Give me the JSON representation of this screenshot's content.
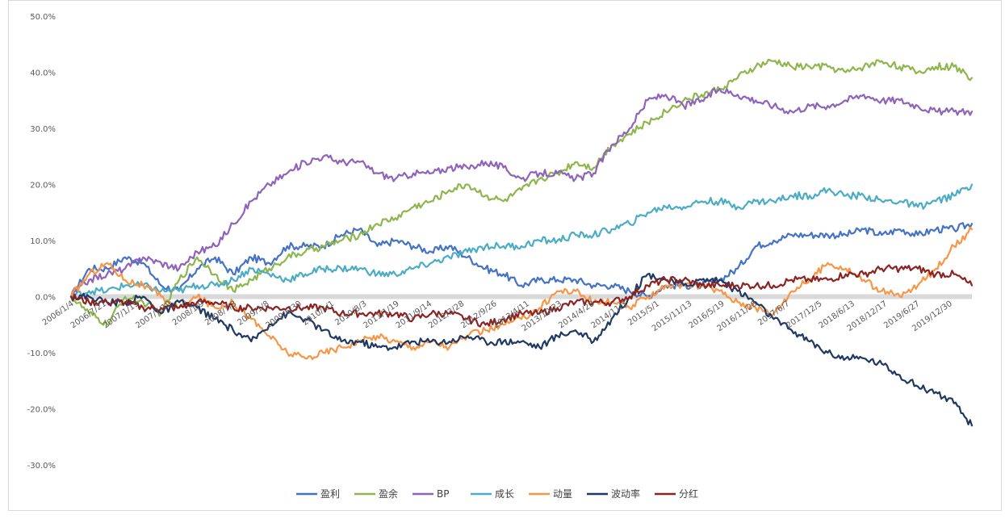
{
  "chart_data": {
    "type": "line",
    "title": "",
    "xlabel": "",
    "ylabel": "",
    "ylim": [
      -30,
      50
    ],
    "y_ticks": [
      "50.0%",
      "40.0%",
      "30.0%",
      "20.0%",
      "10.0%",
      "0.0%",
      "-10.0%",
      "-20.0%",
      "-30.0%"
    ],
    "y_tick_values": [
      50,
      40,
      30,
      20,
      10,
      0,
      -10,
      -20,
      -30
    ],
    "x_ticks": [
      "2006/1/4",
      "2006/7/21",
      "2007/1/19",
      "2007/7/19",
      "2008/1/9",
      "2008/7/8",
      "2009/1/8",
      "2009/6/30",
      "2010/1/1",
      "2010/8/3",
      "2011/1/19",
      "2011/9/14",
      "2012/3/28",
      "2012/9/26",
      "2013/4/11",
      "2013/10/23",
      "2014/4/28",
      "2014/11/3",
      "2015/5/1",
      "2015/11/13",
      "2016/5/19",
      "2016/11/28",
      "2017/6/7",
      "2017/12/5",
      "2018/6/13",
      "2018/12/17",
      "2019/6/27",
      "2019/12/30"
    ],
    "grid": false,
    "zero_line": true,
    "legend_position": "bottom",
    "series": [
      {
        "name": "盈利",
        "color": "#4472C4",
        "x": [
          0,
          2,
          4,
          6,
          8,
          10,
          12,
          14,
          16,
          18,
          20,
          22,
          24,
          26,
          28,
          30,
          32,
          34,
          36,
          38,
          40,
          42,
          44,
          46,
          48,
          50,
          52,
          54,
          56,
          58,
          60,
          62,
          64,
          66,
          68,
          70,
          72,
          74,
          76,
          78,
          80,
          82,
          84,
          86,
          88,
          90,
          92,
          94,
          96,
          98,
          100
        ],
        "y": [
          0,
          5,
          5,
          7,
          6,
          2,
          1,
          5,
          7,
          4,
          7,
          6,
          9,
          9,
          9,
          11,
          12,
          9,
          10,
          9,
          8,
          9,
          7,
          5,
          4,
          2,
          3,
          3,
          3,
          2,
          2,
          1,
          0,
          2,
          2,
          2,
          3,
          5,
          9,
          10,
          11,
          11,
          11,
          11,
          12,
          11,
          12,
          11,
          12,
          12,
          13
        ]
      },
      {
        "name": "盈余",
        "color": "#8DB64C",
        "x": [
          0,
          2,
          4,
          6,
          8,
          10,
          12,
          14,
          16,
          18,
          20,
          22,
          24,
          26,
          28,
          30,
          32,
          34,
          36,
          38,
          40,
          42,
          44,
          46,
          48,
          50,
          52,
          54,
          56,
          58,
          60,
          62,
          64,
          66,
          68,
          70,
          72,
          74,
          76,
          78,
          80,
          82,
          84,
          86,
          88,
          90,
          92,
          94,
          96,
          98,
          100
        ],
        "y": [
          0,
          -3,
          -5,
          0,
          -1,
          -3,
          3,
          7,
          4,
          1,
          3,
          5,
          7,
          8,
          9,
          10,
          11,
          13,
          14,
          16,
          17,
          19,
          20,
          18,
          17,
          19,
          21,
          22,
          24,
          23,
          27,
          29,
          31,
          33,
          35,
          36,
          37,
          39,
          41,
          42,
          41,
          41,
          41,
          40,
          41,
          42,
          41,
          40,
          41,
          41,
          39
        ]
      },
      {
        "name": "BP",
        "color": "#8E63B9",
        "x": [
          0,
          2,
          4,
          6,
          8,
          10,
          12,
          14,
          16,
          18,
          20,
          22,
          24,
          26,
          28,
          30,
          32,
          34,
          36,
          38,
          40,
          42,
          44,
          46,
          48,
          50,
          52,
          54,
          56,
          58,
          60,
          62,
          64,
          66,
          68,
          70,
          72,
          74,
          76,
          78,
          80,
          82,
          84,
          86,
          88,
          90,
          92,
          94,
          96,
          98,
          100
        ],
        "y": [
          0,
          3,
          4,
          5,
          7,
          6,
          5,
          8,
          9,
          13,
          17,
          20,
          22,
          24,
          25,
          24,
          24,
          22,
          21,
          22,
          22,
          23,
          23,
          24,
          23,
          21,
          22,
          22,
          21,
          22,
          27,
          30,
          35,
          36,
          34,
          35,
          37,
          36,
          35,
          34,
          33,
          34,
          34,
          35,
          36,
          35,
          35,
          34,
          33,
          33,
          33
        ]
      },
      {
        "name": "成长",
        "color": "#4BACC6",
        "x": [
          0,
          2,
          4,
          6,
          8,
          10,
          12,
          14,
          16,
          18,
          20,
          22,
          24,
          26,
          28,
          30,
          32,
          34,
          36,
          38,
          40,
          42,
          44,
          46,
          48,
          50,
          52,
          54,
          56,
          58,
          60,
          62,
          64,
          66,
          68,
          70,
          72,
          74,
          76,
          78,
          80,
          82,
          84,
          86,
          88,
          90,
          92,
          94,
          96,
          98,
          100
        ],
        "y": [
          0,
          1,
          1,
          2,
          2,
          1,
          1,
          2,
          2,
          3,
          5,
          4,
          3,
          4,
          5,
          5,
          5,
          4,
          4,
          5,
          6,
          7,
          8,
          9,
          9,
          9,
          10,
          10,
          11,
          11,
          12,
          13,
          15,
          16,
          16,
          17,
          17,
          16,
          17,
          17,
          18,
          18,
          19,
          18,
          18,
          17,
          17,
          16,
          17,
          18,
          20
        ]
      },
      {
        "name": "动量",
        "color": "#F79646",
        "x": [
          0,
          2,
          4,
          6,
          8,
          10,
          12,
          14,
          16,
          18,
          20,
          22,
          24,
          26,
          28,
          30,
          32,
          34,
          36,
          38,
          40,
          42,
          44,
          46,
          48,
          50,
          52,
          54,
          56,
          58,
          60,
          62,
          64,
          66,
          68,
          70,
          72,
          74,
          76,
          78,
          80,
          82,
          84,
          86,
          88,
          90,
          92,
          94,
          96,
          98,
          100
        ],
        "y": [
          0,
          4,
          6,
          3,
          2,
          0,
          -2,
          0,
          -2,
          -1,
          -4,
          -7,
          -10,
          -11,
          -10,
          -9,
          -8,
          -7,
          -8,
          -9,
          -8,
          -9,
          -7,
          -6,
          -5,
          -4,
          -2,
          1,
          1,
          -1,
          -1,
          -2,
          0,
          2,
          2,
          2,
          1,
          -1,
          -2,
          -3,
          1,
          3,
          6,
          5,
          3,
          1,
          0,
          2,
          5,
          9,
          12
        ]
      },
      {
        "name": "波动率",
        "color": "#1F3864",
        "x": [
          0,
          2,
          4,
          6,
          8,
          10,
          12,
          14,
          16,
          18,
          20,
          22,
          24,
          26,
          28,
          30,
          32,
          34,
          36,
          38,
          40,
          42,
          44,
          46,
          48,
          50,
          52,
          54,
          56,
          58,
          60,
          62,
          64,
          66,
          68,
          70,
          72,
          74,
          76,
          78,
          80,
          82,
          84,
          86,
          88,
          90,
          92,
          94,
          96,
          98,
          100
        ],
        "y": [
          0,
          0,
          -1,
          -1,
          0,
          -3,
          -1,
          -2,
          -4,
          -6,
          -8,
          -5,
          -3,
          -4,
          -6,
          -8,
          -8,
          -9,
          -9,
          -8,
          -8,
          -8,
          -7,
          -8,
          -8,
          -8,
          -9,
          -7,
          -6,
          -8,
          -4,
          0,
          4,
          3,
          2,
          3,
          3,
          1,
          -1,
          -4,
          -6,
          -8,
          -10,
          -11,
          -11,
          -12,
          -14,
          -16,
          -17,
          -19,
          -23
        ]
      },
      {
        "name": "分红",
        "color": "#8B2323",
        "x": [
          0,
          2,
          4,
          6,
          8,
          10,
          12,
          14,
          16,
          18,
          20,
          22,
          24,
          26,
          28,
          30,
          32,
          34,
          36,
          38,
          40,
          42,
          44,
          46,
          48,
          50,
          52,
          54,
          56,
          58,
          60,
          62,
          64,
          66,
          68,
          70,
          72,
          74,
          76,
          78,
          80,
          82,
          84,
          86,
          88,
          90,
          92,
          94,
          96,
          98,
          100
        ],
        "y": [
          0,
          -1,
          -1,
          -1,
          -2,
          -2,
          -2,
          -1,
          -1,
          -2,
          -2,
          -2,
          -2,
          -2,
          -2,
          -3,
          -3,
          -3,
          -3,
          -4,
          -3,
          -3,
          -4,
          -5,
          -4,
          -3,
          -3,
          -2,
          -1,
          -1,
          -1,
          0,
          2,
          3,
          3,
          2,
          2,
          2,
          2,
          2,
          3,
          3,
          3,
          4,
          4,
          5,
          5,
          5,
          4,
          4,
          2
        ]
      }
    ]
  }
}
